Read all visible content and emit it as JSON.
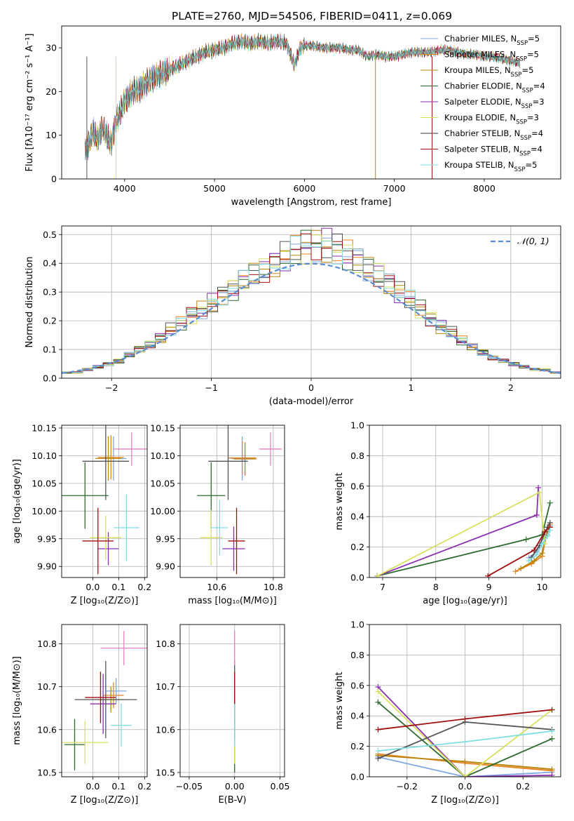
{
  "figure_title": "PLATE=2760, MJD=54506, FIBERID=0411, z=0.069",
  "colors": [
    "#7fa7e0",
    "#e8821e",
    "#b8860b",
    "#2e6b2e",
    "#8b2fb0",
    "#d8e060",
    "#3a3a3a",
    "#a01010",
    "#80dde0"
  ],
  "legend_models": [
    {
      "label": "Chabrier MILES, N",
      "sub": "SSP",
      "val": "=5"
    },
    {
      "label": "Salpeter MILES, N",
      "sub": "SSP",
      "val": "=5"
    },
    {
      "label": "Kroupa MILES, N",
      "sub": "SSP",
      "val": "=5"
    },
    {
      "label": "Chabrier ELODIE, N",
      "sub": "SSP",
      "val": "=4"
    },
    {
      "label": "Salpeter ELODIE, N",
      "sub": "SSP",
      "val": "=3"
    },
    {
      "label": "Kroupa ELODIE, N",
      "sub": "SSP",
      "val": "=3"
    },
    {
      "label": "Chabrier STELIB, N",
      "sub": "SSP",
      "val": "=4"
    },
    {
      "label": "Salpeter STELIB, N",
      "sub": "SSP",
      "val": "=4"
    },
    {
      "label": "Kroupa STELIB, N",
      "sub": "SSP",
      "val": "=5"
    }
  ],
  "chart_data": [
    {
      "id": "spectrum",
      "type": "line",
      "title": "PLATE=2760, MJD=54506, FIBERID=0411, z=0.069",
      "xlabel": "wavelength [Angstrom, rest frame]",
      "ylabel": "Flux [fλ10⁻¹⁷ erg cm⁻² s⁻¹ A⁻¹]",
      "xlim": [
        3300,
        8850
      ],
      "ylim": [
        0,
        35
      ],
      "xticks": [
        4000,
        5000,
        6000,
        7000,
        8000
      ],
      "yticks": [
        0,
        10,
        20,
        30
      ],
      "x": [
        3560,
        3600,
        3650,
        3700,
        3750,
        3800,
        3850,
        3900,
        3950,
        4000,
        4100,
        4200,
        4300,
        4400,
        4500,
        4600,
        4700,
        4800,
        4900,
        5000,
        5100,
        5200,
        5300,
        5400,
        5500,
        5600,
        5700,
        5800,
        5890,
        5950,
        6000,
        6100,
        6200,
        6300,
        6400,
        6500,
        6600,
        6700,
        6800,
        6900,
        7000,
        7100,
        7200,
        7300,
        7400,
        7500,
        7600,
        7700,
        7800,
        7900,
        8000,
        8100,
        8200,
        8300,
        8400
      ],
      "y": [
        7,
        8,
        11,
        9,
        12,
        10,
        8,
        13,
        15,
        18,
        20,
        21,
        23,
        24,
        25,
        26,
        27,
        28,
        29,
        29.5,
        30,
        31,
        31.5,
        31,
        31.5,
        31,
        31.5,
        31,
        26,
        30,
        30.5,
        30.5,
        30,
        30,
        30,
        29.5,
        29.5,
        28,
        28.5,
        28,
        28,
        28.5,
        29,
        29,
        29,
        29.5,
        29.5,
        29,
        28.5,
        28.5,
        28,
        28,
        27.5,
        27,
        26.5
      ],
      "legend": "top-right"
    },
    {
      "id": "residuals",
      "type": "step",
      "xlabel": "(data-model)/error",
      "ylabel": "Normed distribution",
      "xlim": [
        -2.5,
        2.5
      ],
      "ylim": [
        0,
        0.53
      ],
      "xticks": [
        -2,
        -1,
        0,
        1,
        2
      ],
      "yticks": [
        0,
        0.1,
        0.2,
        0.3,
        0.4,
        0.5
      ],
      "grid": true,
      "reference_label": "𝒩(0, 1)",
      "legend": "top-right",
      "histogram": [
        0.02,
        0.02,
        0.03,
        0.04,
        0.05,
        0.06,
        0.08,
        0.1,
        0.12,
        0.14,
        0.17,
        0.19,
        0.22,
        0.24,
        0.26,
        0.29,
        0.31,
        0.34,
        0.36,
        0.38,
        0.4,
        0.42,
        0.44,
        0.46,
        0.47,
        0.46,
        0.45,
        0.43,
        0.41,
        0.38,
        0.36,
        0.33,
        0.3,
        0.27,
        0.24,
        0.21,
        0.18,
        0.16,
        0.13,
        0.11,
        0.09,
        0.07,
        0.06,
        0.05,
        0.04,
        0.03,
        0.03,
        0.02
      ]
    },
    {
      "id": "age_vs_Z",
      "type": "scatter",
      "xlabel": "Z [log₁₀(Z/Z⊙)]",
      "ylabel": "age  [log₁₀(age/yr)]",
      "xlim": [
        -0.12,
        0.21
      ],
      "ylim": [
        9.88,
        10.155
      ],
      "xticks": [
        0.0,
        0.1,
        0.2
      ],
      "yticks": [
        9.9,
        9.95,
        10.0,
        10.05,
        10.1,
        10.15
      ],
      "points": [
        [
          0.08,
          10.095,
          0.05,
          0.04
        ],
        [
          0.07,
          10.097,
          0.05,
          0.04
        ],
        [
          0.06,
          10.095,
          0.05,
          0.04
        ],
        [
          -0.03,
          10.028,
          0.09,
          0.06
        ],
        [
          0.06,
          9.932,
          0.04,
          0.03
        ],
        [
          0.05,
          9.952,
          0.06,
          0.04
        ],
        [
          0.05,
          10.09,
          0.09,
          0.07
        ],
        [
          0.02,
          9.946,
          0.06,
          0.06
        ],
        [
          0.13,
          9.97,
          0.05,
          0.06
        ],
        [
          0.15,
          10.112,
          0.07,
          0.03
        ]
      ]
    },
    {
      "id": "age_vs_mass",
      "type": "scatter",
      "xlabel": "mass [log₁₀(M/M⊙)]",
      "ylabel": "",
      "xlim": [
        10.47,
        10.84
      ],
      "ylim": [
        9.88,
        10.155
      ],
      "xticks": [
        10.6,
        10.8
      ],
      "yticks": [
        9.9,
        9.95,
        10.0,
        10.05,
        10.1,
        10.15
      ],
      "points": [
        [
          10.69,
          10.095,
          0.04,
          0.04
        ],
        [
          10.69,
          10.096,
          0.05,
          0.03
        ],
        [
          10.7,
          10.094,
          0.04,
          0.03
        ],
        [
          10.58,
          10.028,
          0.05,
          0.06
        ],
        [
          10.66,
          9.932,
          0.04,
          0.04
        ],
        [
          10.58,
          9.952,
          0.04,
          0.05
        ],
        [
          10.64,
          10.09,
          0.07,
          0.07
        ],
        [
          10.67,
          9.946,
          0.03,
          0.06
        ],
        [
          10.61,
          9.97,
          0.03,
          0.05
        ],
        [
          10.79,
          10.112,
          0.04,
          0.03
        ]
      ]
    },
    {
      "id": "weight_vs_age",
      "type": "line",
      "xlabel": "age  [log₁₀(age/yr)]",
      "ylabel": "mass weight",
      "xlim": [
        6.75,
        10.35
      ],
      "ylim": [
        0,
        1
      ],
      "xticks": [
        7,
        8,
        9,
        10
      ],
      "yticks": [
        0,
        0.2,
        0.4,
        0.6,
        0.8,
        1.0
      ],
      "series": [
        {
          "x": [
            9.75,
            9.9,
            10.0,
            10.1,
            10.15
          ],
          "y": [
            0.13,
            0.17,
            0.25,
            0.28,
            0.34
          ]
        },
        {
          "x": [
            9.5,
            9.8,
            10.0,
            10.1,
            10.15
          ],
          "y": [
            0.04,
            0.09,
            0.14,
            0.31,
            0.35
          ]
        },
        {
          "x": [
            9.6,
            9.85,
            10.0,
            10.1,
            10.15
          ],
          "y": [
            0.06,
            0.11,
            0.16,
            0.31,
            0.33
          ]
        },
        {
          "x": [
            6.9,
            9.7,
            10.0,
            10.15
          ],
          "y": [
            0.01,
            0.25,
            0.28,
            0.49
          ]
        },
        {
          "x": [
            6.9,
            9.9,
            9.93
          ],
          "y": [
            0.01,
            0.41,
            0.59
          ]
        },
        {
          "x": [
            6.9,
            9.95,
            10.05
          ],
          "y": [
            0.01,
            0.56,
            0.22
          ]
        },
        {
          "x": [
            9.8,
            9.95,
            10.1,
            10.15
          ],
          "y": [
            0.13,
            0.21,
            0.33,
            0.36
          ]
        },
        {
          "x": [
            8.98,
            9.85,
            10.05,
            10.15
          ],
          "y": [
            0.01,
            0.18,
            0.3,
            0.33
          ]
        },
        {
          "x": [
            9.75,
            9.9,
            10.0,
            10.1,
            10.15
          ],
          "y": [
            0.11,
            0.15,
            0.22,
            0.27,
            0.31
          ]
        }
      ]
    },
    {
      "id": "mass_vs_Z",
      "type": "scatter",
      "xlabel": "Z [log₁₀(Z/Z⊙)]",
      "ylabel": "mass [log₁₀(M/M⊙)]",
      "xlim": [
        -0.12,
        0.21
      ],
      "ylim": [
        10.49,
        10.845
      ],
      "xticks": [
        0.0,
        0.1,
        0.2
      ],
      "yticks": [
        10.5,
        10.6,
        10.7,
        10.8
      ],
      "points": [
        [
          0.09,
          10.69,
          0.04,
          0.03
        ],
        [
          0.08,
          10.68,
          0.04,
          0.03
        ],
        [
          0.07,
          10.67,
          0.05,
          0.03
        ],
        [
          -0.07,
          10.565,
          0.04,
          0.06
        ],
        [
          0.04,
          10.66,
          0.05,
          0.07
        ],
        [
          -0.03,
          10.57,
          0.09,
          0.05
        ],
        [
          0.05,
          10.67,
          0.12,
          0.09
        ],
        [
          0.03,
          10.675,
          0.06,
          0.06
        ],
        [
          0.11,
          10.61,
          0.04,
          0.05
        ],
        [
          0.12,
          10.79,
          0.09,
          0.04
        ]
      ]
    },
    {
      "id": "mass_vs_ebv",
      "type": "scatter",
      "xlabel": "E(B-V)",
      "ylabel": "",
      "xlim": [
        -0.06,
        0.055
      ],
      "ylim": [
        10.49,
        10.845
      ],
      "xticks": [
        -0.05,
        0.0,
        0.05
      ],
      "yticks": [
        10.5,
        10.6,
        10.7,
        10.8
      ],
      "points": [
        [
          0.0,
          10.69,
          0,
          0.02
        ],
        [
          0.0,
          10.68,
          0,
          0.02
        ],
        [
          0.0,
          10.67,
          0,
          0.02
        ],
        [
          0.0,
          10.56,
          0,
          0.06
        ],
        [
          0.0,
          10.66,
          0,
          0.07
        ],
        [
          0.0,
          10.57,
          0,
          0.05
        ],
        [
          0.0,
          10.67,
          0,
          0.09
        ],
        [
          0.0,
          10.675,
          0,
          0.06
        ],
        [
          0.0,
          10.61,
          0,
          0.05
        ],
        [
          0.0,
          10.79,
          0,
          0.04
        ]
      ]
    },
    {
      "id": "weight_vs_Z",
      "type": "line",
      "xlabel": "Z [log₁₀(Z/Z⊙)]",
      "ylabel": "mass weight",
      "xlim": [
        -0.33,
        0.33
      ],
      "ylim": [
        0,
        1
      ],
      "xticks": [
        -0.2,
        0.0,
        0.2
      ],
      "yticks": [
        0,
        0.2,
        0.4,
        0.6,
        0.8,
        1.0
      ],
      "series": [
        {
          "x": [
            -0.3,
            0.0,
            0.3
          ],
          "y": [
            0.13,
            0.0,
            0.03
          ]
        },
        {
          "x": [
            -0.3,
            0.0,
            0.3
          ],
          "y": [
            0.15,
            0.09,
            0.04
          ]
        },
        {
          "x": [
            -0.3,
            0.0,
            0.3
          ],
          "y": [
            0.14,
            0.1,
            0.05
          ]
        },
        {
          "x": [
            -0.3,
            0.0,
            0.3
          ],
          "y": [
            0.49,
            0.0,
            0.25
          ]
        },
        {
          "x": [
            -0.3,
            0.0,
            0.3
          ],
          "y": [
            0.59,
            0.0,
            0.01
          ]
        },
        {
          "x": [
            -0.3,
            0.0,
            0.3
          ],
          "y": [
            0.56,
            0.0,
            0.44
          ]
        },
        {
          "x": [
            -0.3,
            0.0,
            0.3
          ],
          "y": [
            0.12,
            0.36,
            0.31
          ]
        },
        {
          "x": [
            -0.3,
            0.0,
            0.3
          ],
          "y": [
            0.31,
            0.38,
            0.44
          ]
        },
        {
          "x": [
            -0.3,
            0.0,
            0.3
          ],
          "y": [
            0.17,
            0.23,
            0.3
          ]
        }
      ]
    }
  ]
}
